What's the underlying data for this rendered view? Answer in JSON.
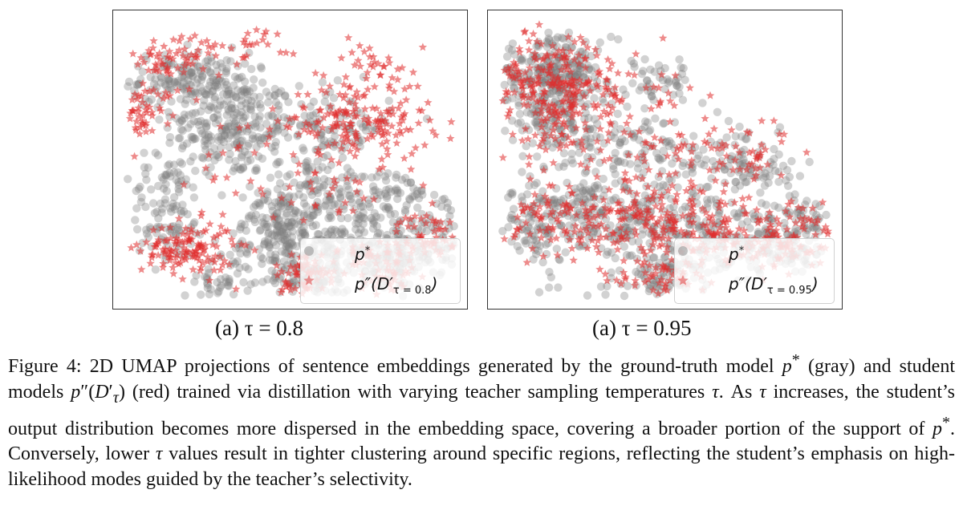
{
  "colors": {
    "gray_points": "#7f7f7f",
    "red_points": "#e02b2b",
    "frame": "#333333"
  },
  "chart_data": [
    {
      "type": "scatter",
      "id": "panel-a",
      "title": "",
      "xlabel": "",
      "ylabel": "",
      "axes_visible": false,
      "legend_position": "lower-right",
      "legend": [
        "p*",
        "p″(D′τ = 0.8)"
      ],
      "legend_label_html": [
        "p<sup style=\"font-size:13px\">*</sup>",
        "p″(D′<sub style=\"font-size:13px;font-style:normal\">τ = 0.8</sub>)"
      ],
      "series": [
        {
          "name": "p*",
          "color": "#7f7f7f",
          "marker": "circle",
          "clusters": [
            [
              0.32,
              0.62,
              0.1,
              0.09,
              240
            ],
            [
              0.2,
              0.79,
              0.09,
              0.05,
              170
            ],
            [
              0.62,
              0.2,
              0.12,
              0.09,
              230
            ],
            [
              0.8,
              0.15,
              0.08,
              0.06,
              140
            ],
            [
              0.55,
              0.4,
              0.12,
              0.06,
              90
            ],
            [
              0.47,
              0.3,
              0.05,
              0.05,
              80
            ],
            [
              0.8,
              0.37,
              0.07,
              0.05,
              60
            ],
            [
              0.13,
              0.32,
              0.06,
              0.1,
              110
            ],
            [
              0.95,
              0.25,
              0.04,
              0.08,
              50
            ],
            [
              0.55,
              0.07,
              0.06,
              0.04,
              60
            ],
            [
              0.62,
              0.62,
              0.09,
              0.07,
              110
            ],
            [
              0.28,
              0.06,
              0.05,
              0.04,
              40
            ],
            [
              0.45,
              0.18,
              0.08,
              0.05,
              60
            ]
          ]
        },
        {
          "name": "p″(D′τ = 0.8)",
          "color": "#e02b2b",
          "marker": "star",
          "clusters": [
            [
              0.19,
              0.18,
              0.07,
              0.05,
              130
            ],
            [
              0.7,
              0.64,
              0.11,
              0.07,
              170
            ],
            [
              0.92,
              0.23,
              0.05,
              0.04,
              55
            ],
            [
              0.55,
              0.11,
              0.05,
              0.03,
              45
            ],
            [
              0.76,
              0.15,
              0.06,
              0.04,
              40
            ],
            [
              0.52,
              0.03,
              0.03,
              0.03,
              20
            ],
            [
              0.79,
              0.07,
              0.04,
              0.03,
              30
            ],
            [
              0.08,
              0.71,
              0.04,
              0.04,
              30
            ],
            [
              0.12,
              0.86,
              0.05,
              0.04,
              40
            ],
            [
              0.4,
              0.92,
              0.08,
              0.03,
              25
            ],
            [
              0.75,
              0.85,
              0.06,
              0.05,
              35
            ],
            [
              0.05,
              0.62,
              0.03,
              0.04,
              18
            ],
            [
              0.62,
              0.38,
              0.1,
              0.05,
              20
            ],
            [
              0.35,
              0.45,
              0.15,
              0.15,
              30
            ],
            [
              0.22,
              0.9,
              0.04,
              0.03,
              18
            ]
          ]
        }
      ]
    },
    {
      "type": "scatter",
      "id": "panel-b",
      "title": "",
      "xlabel": "",
      "ylabel": "",
      "axes_visible": false,
      "legend_position": "lower-right",
      "legend": [
        "p*",
        "p″(D′τ = 0.95)"
      ],
      "legend_label_html": [
        "p<sup style=\"font-size:13px\">*</sup>",
        "p″(D′<sub style=\"font-size:13px;font-style:normal\">τ = 0.95</sub>)"
      ],
      "series": [
        {
          "name": "p*",
          "color": "#7f7f7f",
          "marker": "circle",
          "clusters": [
            [
              0.16,
              0.82,
              0.09,
              0.06,
              230
            ],
            [
              0.15,
              0.66,
              0.08,
              0.07,
              140
            ],
            [
              0.32,
              0.3,
              0.12,
              0.09,
              230
            ],
            [
              0.58,
              0.22,
              0.1,
              0.08,
              170
            ],
            [
              0.82,
              0.2,
              0.08,
              0.06,
              120
            ],
            [
              0.5,
              0.07,
              0.07,
              0.04,
              60
            ],
            [
              0.92,
              0.28,
              0.05,
              0.06,
              50
            ],
            [
              0.6,
              0.52,
              0.12,
              0.06,
              80
            ],
            [
              0.1,
              0.3,
              0.05,
              0.09,
              80
            ],
            [
              0.38,
              0.55,
              0.08,
              0.06,
              70
            ],
            [
              0.75,
              0.47,
              0.07,
              0.05,
              50
            ],
            [
              0.45,
              0.78,
              0.07,
              0.05,
              50
            ]
          ]
        },
        {
          "name": "p″(D′τ = 0.95)",
          "color": "#e02b2b",
          "marker": "star",
          "clusters": [
            [
              0.16,
              0.79,
              0.1,
              0.08,
              210
            ],
            [
              0.34,
              0.3,
              0.13,
              0.09,
              170
            ],
            [
              0.6,
              0.24,
              0.11,
              0.09,
              120
            ],
            [
              0.83,
              0.21,
              0.08,
              0.06,
              80
            ],
            [
              0.5,
              0.08,
              0.07,
              0.04,
              35
            ],
            [
              0.18,
              0.6,
              0.08,
              0.08,
              60
            ],
            [
              0.6,
              0.52,
              0.13,
              0.07,
              55
            ],
            [
              0.75,
              0.5,
              0.08,
              0.05,
              25
            ],
            [
              0.1,
              0.3,
              0.05,
              0.08,
              35
            ],
            [
              0.92,
              0.27,
              0.05,
              0.05,
              25
            ],
            [
              0.4,
              0.7,
              0.1,
              0.08,
              35
            ]
          ]
        }
      ]
    }
  ],
  "captions": {
    "sub_a": "(a) τ = 0.8",
    "sub_b": "(a) τ = 0.95"
  },
  "figure_caption": {
    "label": "Figure 4:",
    "html": "Figure 4: 2D UMAP projections of sentence embeddings generated by the ground-truth model <i>p</i><sup>*</sup> (gray) and student models <i>p</i>″(<i>D</i>′<sub><i>τ</i></sub>) (red) trained via distillation with varying teacher sampling temperatures <i>τ</i>. As <i>τ</i> increases, the student’s output distribution becomes more dispersed in the embedding space, covering a broader portion of the support of <i>p</i><sup>*</sup>. Conversely, lower <i>τ</i> values result in tighter clustering around specific regions, reflecting the student’s emphasis on high-likelihood modes guided by the teacher’s selectivity."
  }
}
